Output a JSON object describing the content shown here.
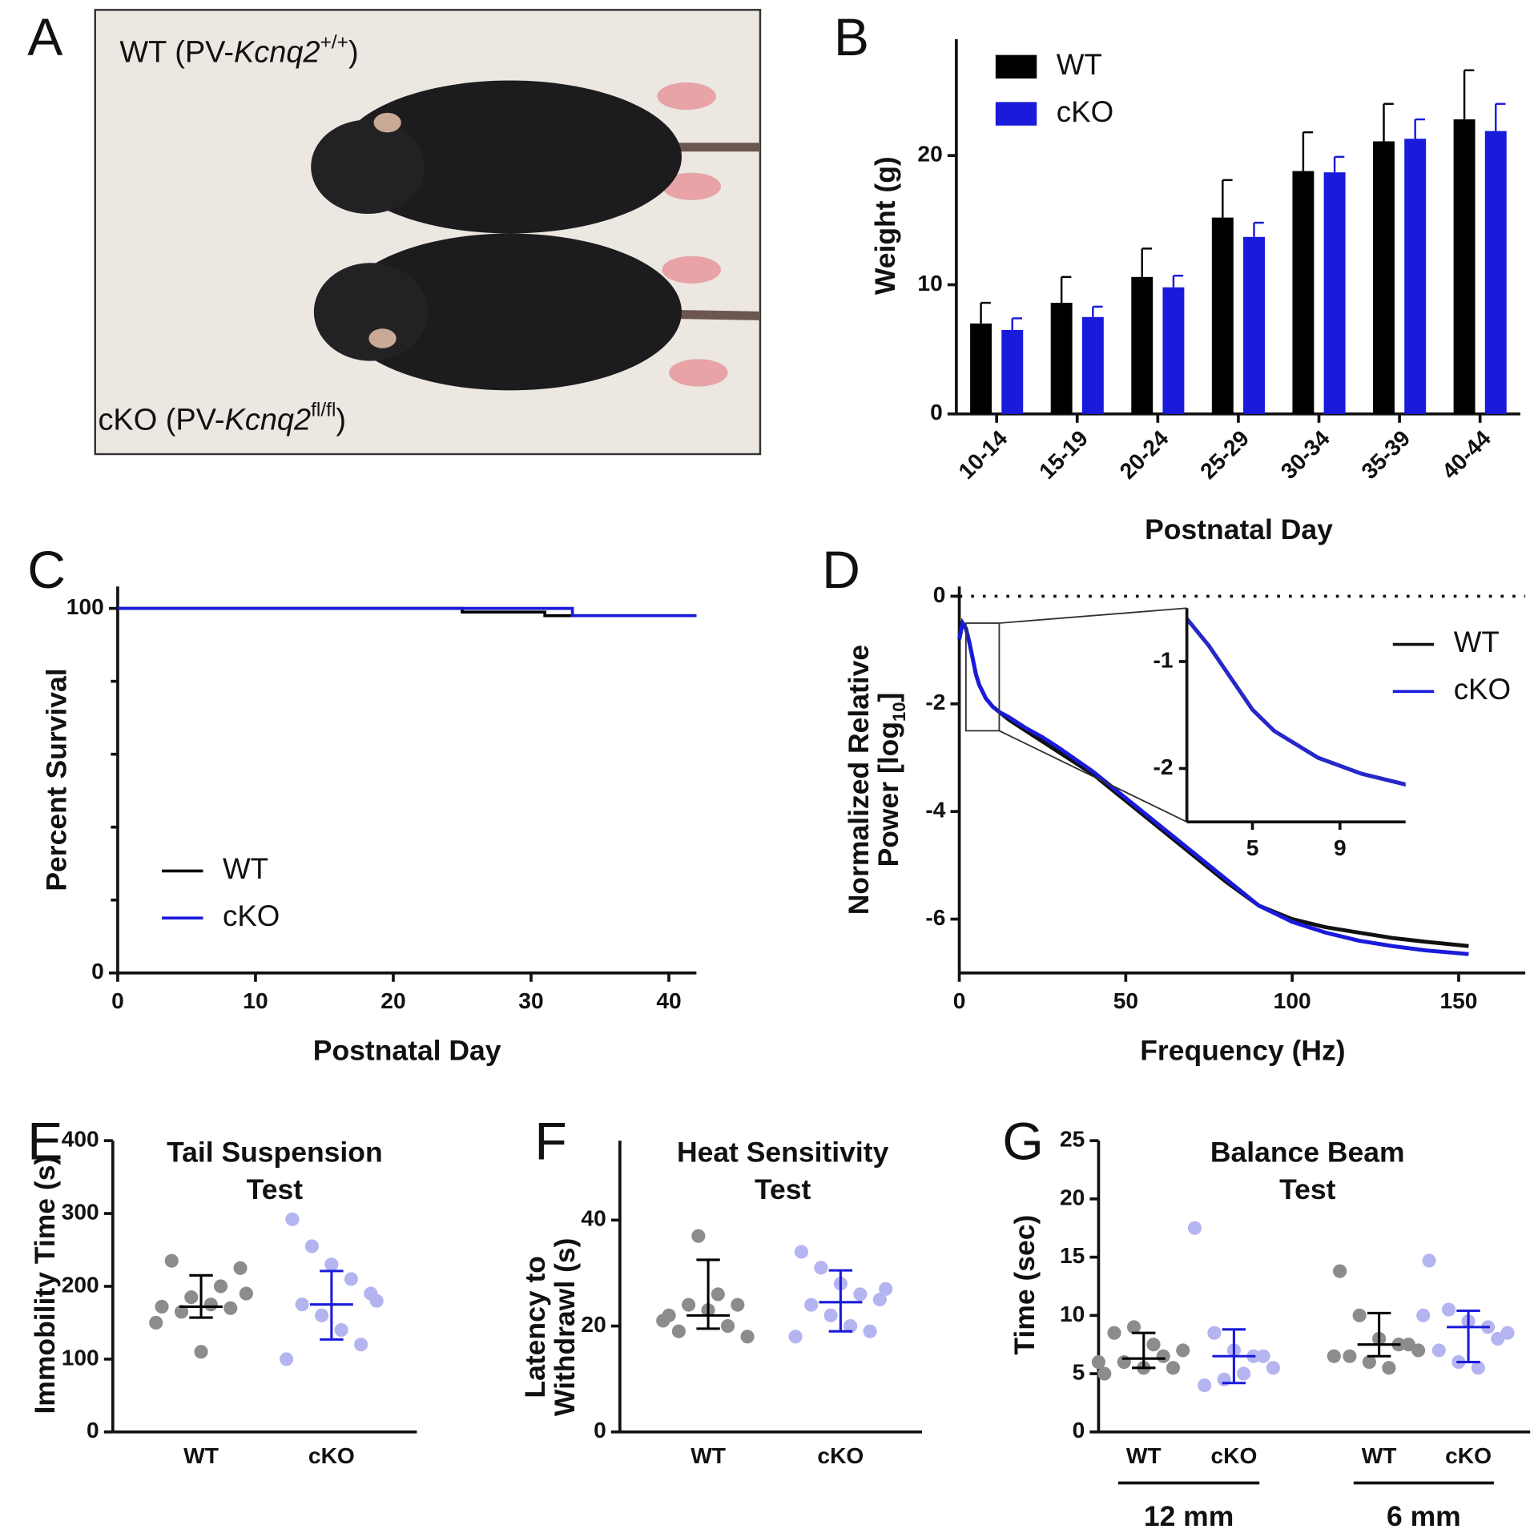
{
  "photo": {
    "panel": "A",
    "top_label": [
      "WT (PV-",
      "Kcnq2",
      "+/+",
      ")"
    ],
    "bottom_label": [
      "cKO (PV-",
      "Kcnq2",
      "fl/fl",
      ")"
    ]
  },
  "chart_data": [
    {
      "type": "bar",
      "panel": "B",
      "ylabel": "Weight (g)",
      "xlabel": "Postnatal Day",
      "categories": [
        "10-14",
        "15-19",
        "20-24",
        "25-29",
        "30-34",
        "35-39",
        "40-44"
      ],
      "series": [
        {
          "name": "WT",
          "color": "#000000",
          "values": [
            7.0,
            8.6,
            10.6,
            15.2,
            18.8,
            21.1,
            22.8
          ],
          "errors": [
            1.6,
            2.0,
            2.2,
            2.9,
            3.0,
            2.9,
            3.8
          ]
        },
        {
          "name": "cKO",
          "color": "#1a1adb",
          "values": [
            6.5,
            7.5,
            9.8,
            13.7,
            18.7,
            21.3,
            21.9
          ],
          "errors": [
            0.9,
            0.8,
            0.9,
            1.1,
            1.2,
            1.5,
            2.1
          ]
        }
      ],
      "ylim": [
        0,
        29
      ],
      "yticks": [
        0,
        10,
        20
      ],
      "legend": "upper left"
    },
    {
      "type": "step",
      "panel": "C",
      "ylabel": "Percent Survival",
      "xlabel": "Postnatal Day",
      "series": [
        {
          "name": "WT",
          "color": "#000000",
          "x": [
            0,
            25,
            25,
            31,
            31,
            42
          ],
          "values": [
            100,
            100,
            99,
            99,
            98,
            98
          ]
        },
        {
          "name": "cKO",
          "color": "#1a1adb",
          "x": [
            0,
            33,
            33,
            42
          ],
          "values": [
            100,
            100,
            98,
            98
          ]
        }
      ],
      "xlim": [
        0,
        42
      ],
      "xticks": [
        0,
        10,
        20,
        30,
        40
      ],
      "ylim": [
        0,
        106
      ],
      "yticks": [
        0,
        100
      ],
      "yminorticks": [
        20,
        40,
        60,
        80
      ],
      "legend": "lower left"
    },
    {
      "type": "line",
      "panel": "D",
      "ylabel": [
        "Normalized Relative",
        "Power [log"
      ],
      "ylabel_sub": "10",
      "ylabel_end": "]",
      "xlabel": "Frequency (Hz)",
      "x": [
        0,
        1,
        2,
        3,
        4,
        5,
        6,
        8,
        10,
        12,
        15,
        20,
        25,
        30,
        40,
        50,
        60,
        70,
        80,
        90,
        100,
        110,
        120,
        130,
        140,
        153
      ],
      "series": [
        {
          "name": "WT",
          "color": "#111111",
          "values": [
            -0.8,
            -0.5,
            -0.6,
            -0.85,
            -1.15,
            -1.45,
            -1.65,
            -1.9,
            -2.05,
            -2.15,
            -2.3,
            -2.5,
            -2.7,
            -2.9,
            -3.3,
            -3.8,
            -4.3,
            -4.8,
            -5.3,
            -5.75,
            -6.0,
            -6.15,
            -6.25,
            -6.35,
            -6.42,
            -6.5
          ]
        },
        {
          "name": "cKO",
          "color": "#1a1adb",
          "values": [
            -0.8,
            -0.5,
            -0.6,
            -0.85,
            -1.15,
            -1.45,
            -1.65,
            -1.9,
            -2.05,
            -2.15,
            -2.25,
            -2.45,
            -2.62,
            -2.82,
            -3.25,
            -3.75,
            -4.25,
            -4.75,
            -5.25,
            -5.75,
            -6.05,
            -6.25,
            -6.4,
            -6.5,
            -6.58,
            -6.65
          ]
        }
      ],
      "xlim": [
        0,
        170
      ],
      "xticks": [
        0,
        50,
        100,
        150
      ],
      "ylim": [
        -7,
        0.18
      ],
      "yticks": [
        0,
        -2,
        -4,
        -6
      ],
      "hline": 0,
      "legend": "upper right",
      "inset": {
        "xlim": [
          2,
          12
        ],
        "ylim": [
          -2.5,
          -0.5
        ],
        "xticks": [
          5,
          9
        ],
        "yticks": [
          -1,
          -2
        ]
      }
    },
    {
      "type": "strip",
      "panel": "E",
      "title": [
        "Tail Suspension",
        "Test"
      ],
      "ylabel": "Immobility Time (s)",
      "categories": [
        "WT",
        "cKO"
      ],
      "groups": [
        {
          "color": "#8c8c8c",
          "bar_color": "#000000",
          "values": [
            172,
            165,
            110,
            200,
            225,
            235,
            185,
            175,
            170,
            150,
            190
          ],
          "center": 172,
          "low": 157,
          "high": 215
        },
        {
          "color": "#b4b4f0",
          "bar_color": "#1a1adb",
          "values": [
            292,
            255,
            230,
            210,
            190,
            175,
            160,
            140,
            120,
            100,
            180
          ],
          "center": 175,
          "low": 127,
          "high": 221
        }
      ],
      "ylim": [
        0,
        400
      ],
      "yticks": [
        0,
        100,
        200,
        300,
        400
      ]
    },
    {
      "type": "strip",
      "panel": "F",
      "title": [
        "Heat Sensitivity",
        "Test"
      ],
      "ylabel": [
        "Latency to",
        "Withdrawl (s)"
      ],
      "categories": [
        "WT",
        "cKO"
      ],
      "groups": [
        {
          "color": "#8c8c8c",
          "bar_color": "#000000",
          "values": [
            22,
            24,
            23,
            20,
            18,
            19,
            37,
            26,
            24,
            21
          ],
          "center": 22,
          "low": 19.5,
          "high": 32.5
        },
        {
          "color": "#b4b4f0",
          "bar_color": "#1a1adb",
          "values": [
            34,
            31,
            28,
            26,
            25,
            24,
            22,
            20,
            19,
            18,
            27
          ],
          "center": 24.5,
          "low": 19,
          "high": 30.5
        }
      ],
      "ylim": [
        0,
        55
      ],
      "yticks": [
        0,
        20,
        40
      ]
    },
    {
      "type": "strip",
      "panel": "G",
      "title": [
        "Balance Beam",
        "Test"
      ],
      "ylabel": "Time (sec)",
      "categories": [
        "WT",
        "cKO",
        "WT",
        "cKO"
      ],
      "supercategories": [
        "12 mm",
        "6 mm"
      ],
      "groups": [
        {
          "color": "#8c8c8c",
          "bar_color": "#000000",
          "values": [
            5,
            6,
            5.5,
            6.5,
            7,
            8.5,
            9,
            7.5,
            5.5,
            6
          ],
          "center": 6.3,
          "low": 5.5,
          "high": 8.5
        },
        {
          "color": "#b4b4f0",
          "bar_color": "#1a1adb",
          "values": [
            17.5,
            8.5,
            7,
            6.5,
            5.5,
            4,
            4.5,
            5,
            6.5
          ],
          "center": 6.5,
          "low": 4.2,
          "high": 8.8
        },
        {
          "color": "#8c8c8c",
          "bar_color": "#000000",
          "values": [
            13.8,
            10,
            8,
            7.5,
            7,
            6.5,
            6,
            5.5,
            7.5,
            6.5
          ],
          "center": 7.5,
          "low": 6.5,
          "high": 10.2
        },
        {
          "color": "#b4b4f0",
          "bar_color": "#1a1adb",
          "values": [
            14.7,
            10.5,
            9.5,
            9,
            8.5,
            7,
            6,
            5.5,
            8,
            10
          ],
          "center": 9,
          "low": 6,
          "high": 10.4
        }
      ],
      "ylim": [
        0,
        25
      ],
      "yticks": [
        0,
        5,
        10,
        15,
        20,
        25
      ]
    }
  ]
}
